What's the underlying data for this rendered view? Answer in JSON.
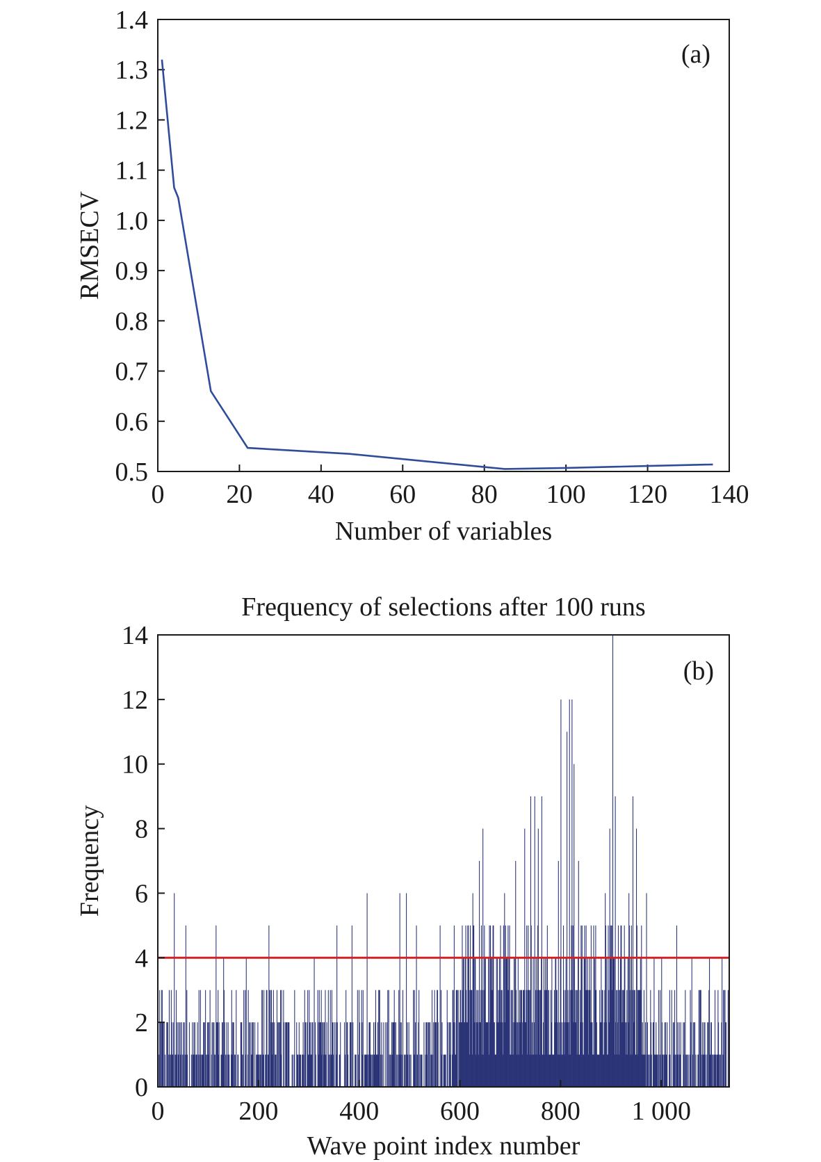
{
  "chart_data": [
    {
      "type": "line",
      "panel_label": "(a)",
      "title": "",
      "xlabel": "Number of variables",
      "ylabel": "RMSECV",
      "xlim": [
        0,
        140
      ],
      "ylim": [
        0.5,
        1.4
      ],
      "xticks": [
        "0",
        "20",
        "40",
        "60",
        "80",
        "100",
        "120",
        "140"
      ],
      "yticks": [
        "0.5",
        "0.6",
        "0.7",
        "0.8",
        "0.9",
        "1.0",
        "1.1",
        "1.2",
        "1.3",
        "1.4"
      ],
      "grid": false,
      "line_color": "#2e4c9a",
      "x": [
        1,
        4,
        5,
        13,
        22,
        47,
        85,
        100,
        120,
        136
      ],
      "y": [
        1.32,
        1.065,
        1.045,
        0.66,
        0.547,
        0.535,
        0.505,
        0.507,
        0.511,
        0.514
      ]
    },
    {
      "type": "bar",
      "panel_label": "(b)",
      "title": "Frequency of selections after 100 runs",
      "xlabel": "Wave point index number",
      "ylabel": "Frequency",
      "xlim": [
        0,
        1135
      ],
      "ylim": [
        0,
        14
      ],
      "xticks": [
        "0",
        "200",
        "400",
        "600",
        "800",
        "1 000"
      ],
      "yticks": [
        "0",
        "2",
        "4",
        "6",
        "8",
        "10",
        "12",
        "14"
      ],
      "grid": false,
      "bar_color": "#2b3477",
      "threshold": 4,
      "threshold_color": "#d42020",
      "peaks": [
        {
          "x": 8,
          "v": 3
        },
        {
          "x": 22,
          "v": 3
        },
        {
          "x": 32,
          "v": 6
        },
        {
          "x": 55,
          "v": 5
        },
        {
          "x": 115,
          "v": 5
        },
        {
          "x": 130,
          "v": 4
        },
        {
          "x": 175,
          "v": 4
        },
        {
          "x": 220,
          "v": 5
        },
        {
          "x": 310,
          "v": 4
        },
        {
          "x": 355,
          "v": 5
        },
        {
          "x": 385,
          "v": 5
        },
        {
          "x": 415,
          "v": 6
        },
        {
          "x": 480,
          "v": 6
        },
        {
          "x": 493,
          "v": 6
        },
        {
          "x": 513,
          "v": 5
        },
        {
          "x": 560,
          "v": 5
        },
        {
          "x": 588,
          "v": 5
        },
        {
          "x": 625,
          "v": 6
        },
        {
          "x": 638,
          "v": 7
        },
        {
          "x": 645,
          "v": 8
        },
        {
          "x": 665,
          "v": 5
        },
        {
          "x": 688,
          "v": 6
        },
        {
          "x": 710,
          "v": 7
        },
        {
          "x": 728,
          "v": 8
        },
        {
          "x": 740,
          "v": 9
        },
        {
          "x": 748,
          "v": 9
        },
        {
          "x": 755,
          "v": 8
        },
        {
          "x": 762,
          "v": 9
        },
        {
          "x": 795,
          "v": 7
        },
        {
          "x": 800,
          "v": 12
        },
        {
          "x": 812,
          "v": 11
        },
        {
          "x": 817,
          "v": 12
        },
        {
          "x": 822,
          "v": 12
        },
        {
          "x": 826,
          "v": 10
        },
        {
          "x": 835,
          "v": 7
        },
        {
          "x": 850,
          "v": 5
        },
        {
          "x": 865,
          "v": 5
        },
        {
          "x": 888,
          "v": 6
        },
        {
          "x": 897,
          "v": 8
        },
        {
          "x": 903,
          "v": 14
        },
        {
          "x": 908,
          "v": 9
        },
        {
          "x": 935,
          "v": 6
        },
        {
          "x": 943,
          "v": 9
        },
        {
          "x": 950,
          "v": 8
        },
        {
          "x": 960,
          "v": 5
        },
        {
          "x": 970,
          "v": 6
        },
        {
          "x": 985,
          "v": 4
        },
        {
          "x": 1000,
          "v": 4
        },
        {
          "x": 1030,
          "v": 5
        },
        {
          "x": 1060,
          "v": 4
        },
        {
          "x": 1095,
          "v": 4
        },
        {
          "x": 1120,
          "v": 4
        }
      ]
    }
  ]
}
